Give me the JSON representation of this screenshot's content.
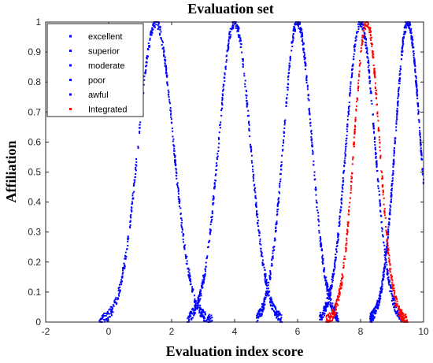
{
  "chart_data": {
    "type": "scatter",
    "title": "Evaluation set",
    "xlabel": "Evaluation index score",
    "ylabel": "Affiliation",
    "xlim": [
      -2,
      10
    ],
    "ylim": [
      0,
      1
    ],
    "x_ticks": [
      "-2",
      "0",
      "2",
      "4",
      "6",
      "8",
      "10"
    ],
    "y_ticks": [
      "0",
      "0.1",
      "0.2",
      "0.3",
      "0.4",
      "0.5",
      "0.6",
      "0.7",
      "0.8",
      "0.9",
      "1"
    ],
    "grid": false,
    "legend_position": "top-left",
    "series": [
      {
        "name": "excellent",
        "color": "#0000ff",
        "center": 1.5,
        "sigma": 0.55,
        "x_range": [
          -0.3,
          3.3
        ],
        "peak": 1
      },
      {
        "name": "superior",
        "color": "#0000ff",
        "center": 4.0,
        "sigma": 0.5,
        "x_range": [
          2.5,
          5.5
        ],
        "peak": 1
      },
      {
        "name": "moderate",
        "color": "#0000ff",
        "center": 6.0,
        "sigma": 0.45,
        "x_range": [
          4.7,
          7.3
        ],
        "peak": 1
      },
      {
        "name": "poor",
        "color": "#0000ff",
        "center": 8.0,
        "sigma": 0.45,
        "x_range": [
          6.7,
          9.3
        ],
        "peak": 1
      },
      {
        "name": "awful",
        "color": "#0000ff",
        "center": 9.5,
        "sigma": 0.4,
        "x_range": [
          8.3,
          10
        ],
        "peak": 1
      },
      {
        "name": "Integrated",
        "color": "#ff0000",
        "center": 8.2,
        "sigma": 0.4,
        "x_range": [
          6.9,
          9.5
        ],
        "peak": 1
      }
    ]
  }
}
